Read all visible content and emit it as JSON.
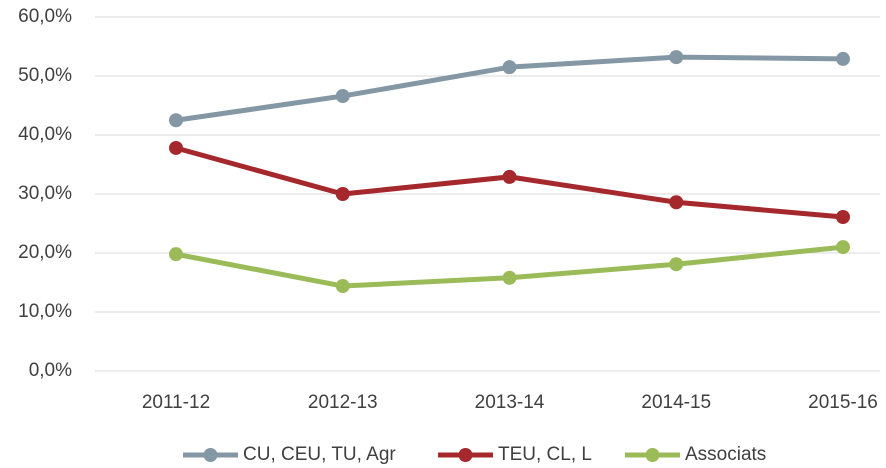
{
  "chart_data": {
    "type": "line",
    "categories": [
      "2011-12",
      "2012-13",
      "2013-14",
      "2014-15",
      "2015-16"
    ],
    "series": [
      {
        "name": "CU, CEU, TU, Agr",
        "color": "#8497a4",
        "values": [
          42.5,
          46.6,
          51.5,
          53.2,
          52.9
        ]
      },
      {
        "name": "TEU, CL, L",
        "color": "#a5282c",
        "values": [
          37.8,
          30.0,
          32.9,
          28.6,
          26.1
        ]
      },
      {
        "name": "Associats",
        "color": "#9bbb59",
        "values": [
          19.8,
          14.4,
          15.8,
          18.1,
          21.0
        ]
      }
    ],
    "ylim": [
      0,
      60
    ],
    "yticks": [
      {
        "value": 0,
        "label": "0,0%"
      },
      {
        "value": 10,
        "label": "10,0%"
      },
      {
        "value": 20,
        "label": "20,0%"
      },
      {
        "value": 30,
        "label": "30,0%"
      },
      {
        "value": 40,
        "label": "40,0%"
      },
      {
        "value": 50,
        "label": "50,0%"
      },
      {
        "value": 60,
        "label": "60,0%"
      }
    ],
    "grid": true,
    "legend": "bottom"
  }
}
